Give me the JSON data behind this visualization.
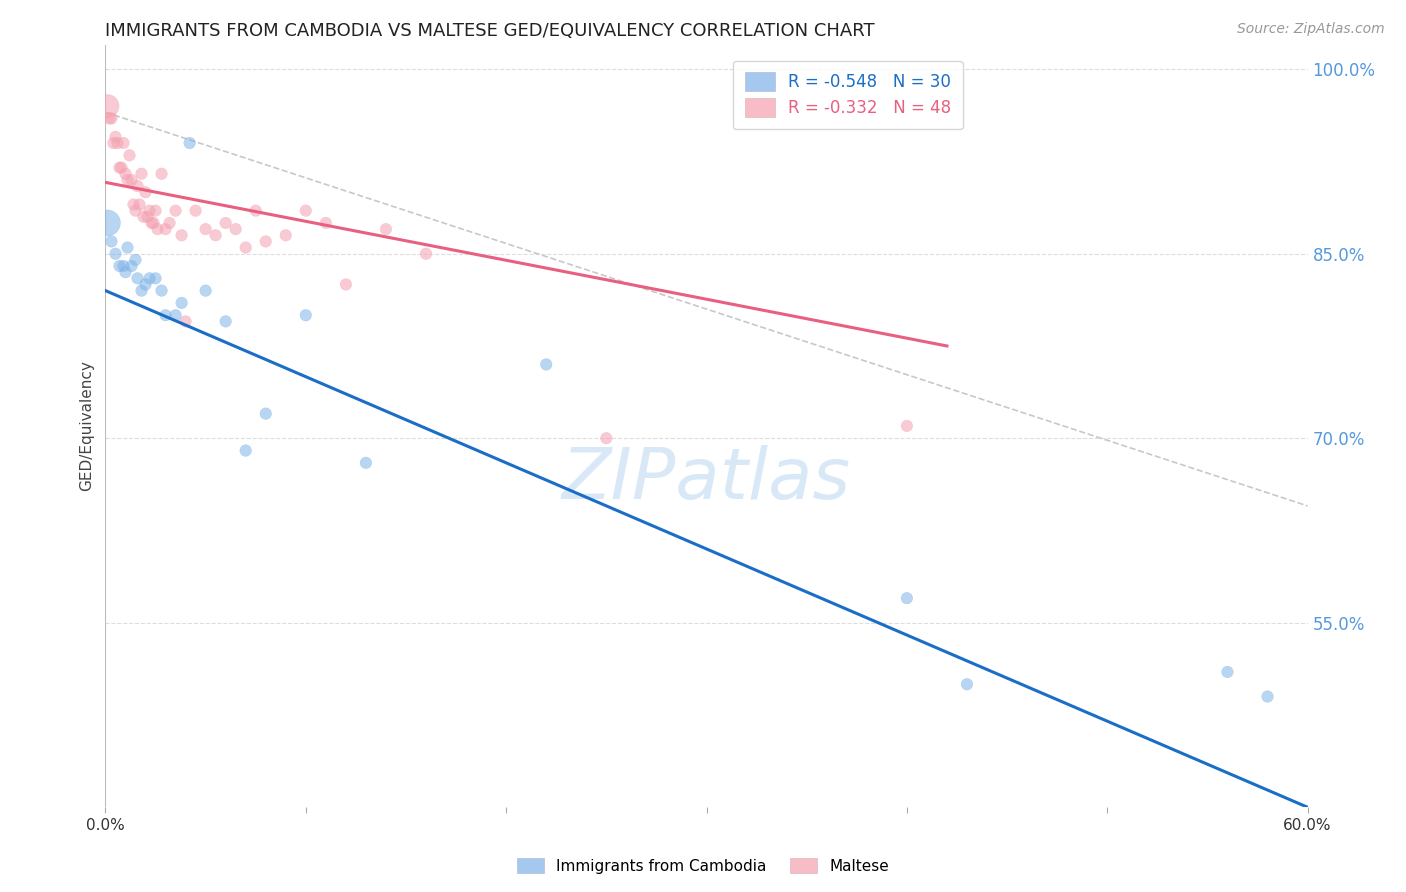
{
  "title": "IMMIGRANTS FROM CAMBODIA VS MALTESE GED/EQUIVALENCY CORRELATION CHART",
  "source": "Source: ZipAtlas.com",
  "ylabel": "GED/Equivalency",
  "x_min": 0.0,
  "x_max": 0.6,
  "y_min": 0.4,
  "y_max": 1.02,
  "y_ticks": [
    0.55,
    0.7,
    0.85,
    1.0
  ],
  "y_tick_labels": [
    "55.0%",
    "70.0%",
    "85.0%",
    "100.0%"
  ],
  "x_ticks": [
    0.0,
    0.1,
    0.2,
    0.3,
    0.4,
    0.5,
    0.6
  ],
  "x_tick_labels": [
    "0.0%",
    "",
    "",
    "",
    "",
    "",
    "60.0%"
  ],
  "watermark": "ZIPatlas",
  "blue_color": "#7fb3e8",
  "pink_color": "#f4a0b0",
  "blue_line_color": "#1a6ec7",
  "pink_line_color": "#e86080",
  "dashed_line_color": "#c8c8c8",
  "background_color": "#ffffff",
  "grid_color": "#dddddd",
  "title_fontsize": 13,
  "source_fontsize": 10,
  "watermark_fontsize": 52,
  "blue_scatter_x": [
    0.001,
    0.003,
    0.005,
    0.007,
    0.009,
    0.01,
    0.011,
    0.013,
    0.015,
    0.016,
    0.018,
    0.02,
    0.022,
    0.025,
    0.028,
    0.03,
    0.035,
    0.038,
    0.042,
    0.05,
    0.06,
    0.07,
    0.08,
    0.1,
    0.13,
    0.22,
    0.4,
    0.43,
    0.56,
    0.58
  ],
  "blue_scatter_y": [
    0.875,
    0.86,
    0.85,
    0.84,
    0.84,
    0.835,
    0.855,
    0.84,
    0.845,
    0.83,
    0.82,
    0.825,
    0.83,
    0.83,
    0.82,
    0.8,
    0.8,
    0.81,
    0.94,
    0.82,
    0.795,
    0.69,
    0.72,
    0.8,
    0.68,
    0.76,
    0.57,
    0.5,
    0.51,
    0.49
  ],
  "blue_scatter_sizes": [
    350,
    70,
    70,
    70,
    70,
    70,
    70,
    70,
    70,
    70,
    70,
    70,
    70,
    70,
    70,
    70,
    70,
    70,
    70,
    70,
    70,
    70,
    70,
    70,
    70,
    70,
    70,
    70,
    70,
    70
  ],
  "pink_scatter_x": [
    0.001,
    0.002,
    0.003,
    0.004,
    0.005,
    0.006,
    0.007,
    0.008,
    0.009,
    0.01,
    0.011,
    0.012,
    0.013,
    0.014,
    0.015,
    0.016,
    0.017,
    0.018,
    0.019,
    0.02,
    0.021,
    0.022,
    0.023,
    0.024,
    0.025,
    0.026,
    0.028,
    0.03,
    0.032,
    0.035,
    0.038,
    0.04,
    0.045,
    0.05,
    0.055,
    0.06,
    0.065,
    0.07,
    0.075,
    0.08,
    0.09,
    0.1,
    0.11,
    0.12,
    0.14,
    0.16,
    0.25,
    0.4
  ],
  "pink_scatter_y": [
    0.97,
    0.96,
    0.96,
    0.94,
    0.945,
    0.94,
    0.92,
    0.92,
    0.94,
    0.915,
    0.91,
    0.93,
    0.91,
    0.89,
    0.885,
    0.905,
    0.89,
    0.915,
    0.88,
    0.9,
    0.88,
    0.885,
    0.875,
    0.875,
    0.885,
    0.87,
    0.915,
    0.87,
    0.875,
    0.885,
    0.865,
    0.795,
    0.885,
    0.87,
    0.865,
    0.875,
    0.87,
    0.855,
    0.885,
    0.86,
    0.865,
    0.885,
    0.875,
    0.825,
    0.87,
    0.85,
    0.7,
    0.71
  ],
  "pink_scatter_sizes": [
    280,
    70,
    70,
    70,
    70,
    70,
    70,
    70,
    70,
    70,
    70,
    70,
    70,
    70,
    70,
    70,
    70,
    70,
    70,
    70,
    70,
    70,
    70,
    70,
    70,
    70,
    70,
    70,
    70,
    70,
    70,
    70,
    70,
    70,
    70,
    70,
    70,
    70,
    70,
    70,
    70,
    70,
    70,
    70,
    70,
    70,
    70,
    70
  ],
  "blue_trendline": [
    0.0,
    0.82,
    0.6,
    0.4
  ],
  "pink_trendline": [
    0.0,
    0.908,
    0.42,
    0.775
  ],
  "dashed_trendline": [
    0.0,
    0.965,
    0.6,
    0.645
  ]
}
